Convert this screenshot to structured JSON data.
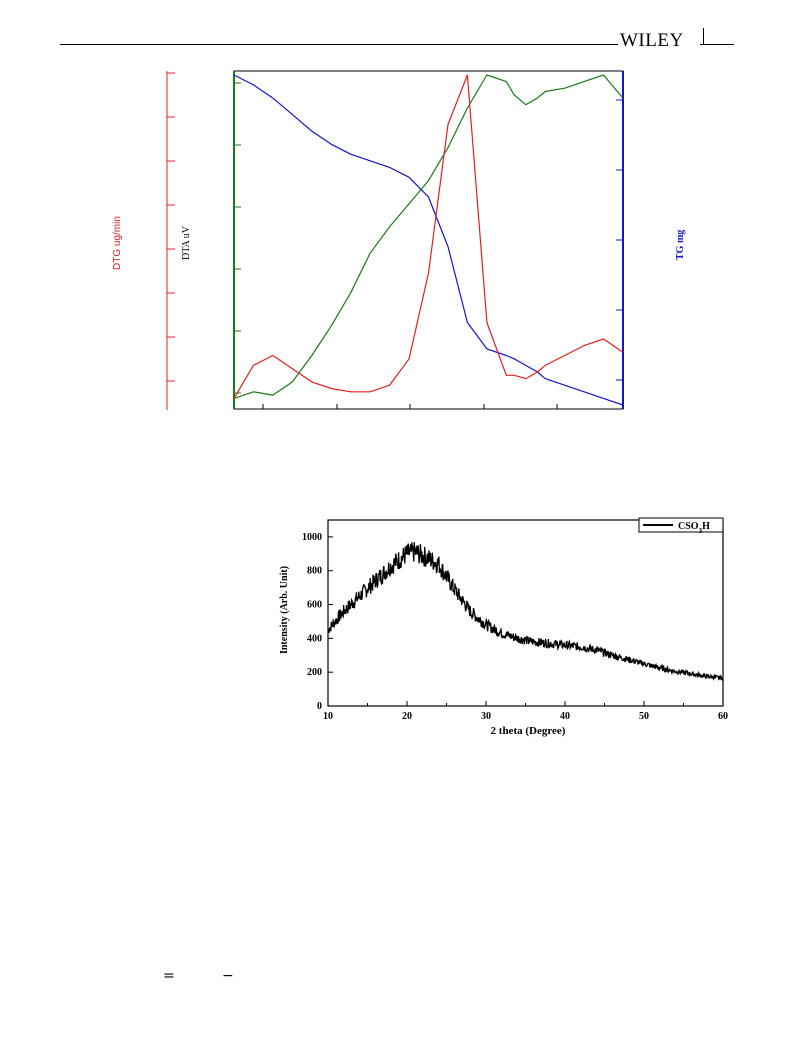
{
  "header": {
    "brand": "WILEY"
  },
  "footer_glyphs": [
    "=",
    "−"
  ],
  "chart_data": [
    {
      "type": "line",
      "title": "",
      "xlabel": "",
      "y_axes": [
        {
          "label": "DTG ug/min",
          "color": "#e02020",
          "side": "left-outer"
        },
        {
          "label": "DTA uV",
          "color": "#1a7a1a",
          "side": "left-inner"
        },
        {
          "label": "TG mg",
          "color": "#1515c8",
          "side": "right"
        }
      ],
      "x": [
        0,
        5,
        10,
        15,
        20,
        25,
        30,
        35,
        40,
        45,
        50,
        55,
        60,
        65,
        70,
        72,
        75,
        78,
        80,
        85,
        90,
        95,
        100
      ],
      "series": [
        {
          "axis": "TG mg",
          "color": "#1515c8",
          "values": [
            100,
            97,
            93,
            88,
            83,
            79,
            76,
            74,
            72,
            69,
            63,
            48,
            25,
            17,
            15,
            14,
            12,
            10,
            8,
            6,
            4,
            2,
            0
          ]
        },
        {
          "axis": "DTA uV",
          "color": "#1a7a1a",
          "values": [
            2,
            4,
            3,
            7,
            15,
            24,
            34,
            46,
            54,
            61,
            68,
            78,
            90,
            100,
            98,
            94,
            91,
            93,
            95,
            96,
            98,
            100,
            93
          ]
        },
        {
          "axis": "DTG ug/min",
          "color": "#e02020",
          "values": [
            2,
            12,
            15,
            11,
            7,
            5,
            4,
            4,
            6,
            14,
            40,
            85,
            100,
            25,
            9,
            9,
            8,
            10,
            12,
            15,
            18,
            20,
            16
          ]
        }
      ]
    },
    {
      "type": "line",
      "title": "",
      "xlabel": "2 theta (Degree)",
      "ylabel": "Intensity (Arb. Unit)",
      "xlim": [
        10,
        60
      ],
      "ylim": [
        0,
        1100
      ],
      "xticks": [
        "10",
        "20",
        "30",
        "40",
        "50",
        "60"
      ],
      "yticks": [
        "0",
        "200",
        "400",
        "600",
        "800",
        "1000"
      ],
      "legend": "top-right",
      "series": [
        {
          "name": "CSO3H",
          "x": [
            10,
            12,
            14,
            16,
            18,
            20,
            21,
            22,
            24,
            26,
            28,
            30,
            32,
            34,
            36,
            38,
            40,
            42,
            44,
            46,
            48,
            50,
            52,
            54,
            56,
            58,
            60
          ],
          "values": [
            450,
            560,
            650,
            740,
            830,
            900,
            910,
            890,
            840,
            690,
            560,
            480,
            430,
            400,
            380,
            370,
            360,
            350,
            330,
            300,
            275,
            250,
            225,
            205,
            190,
            175,
            165
          ]
        }
      ]
    }
  ]
}
